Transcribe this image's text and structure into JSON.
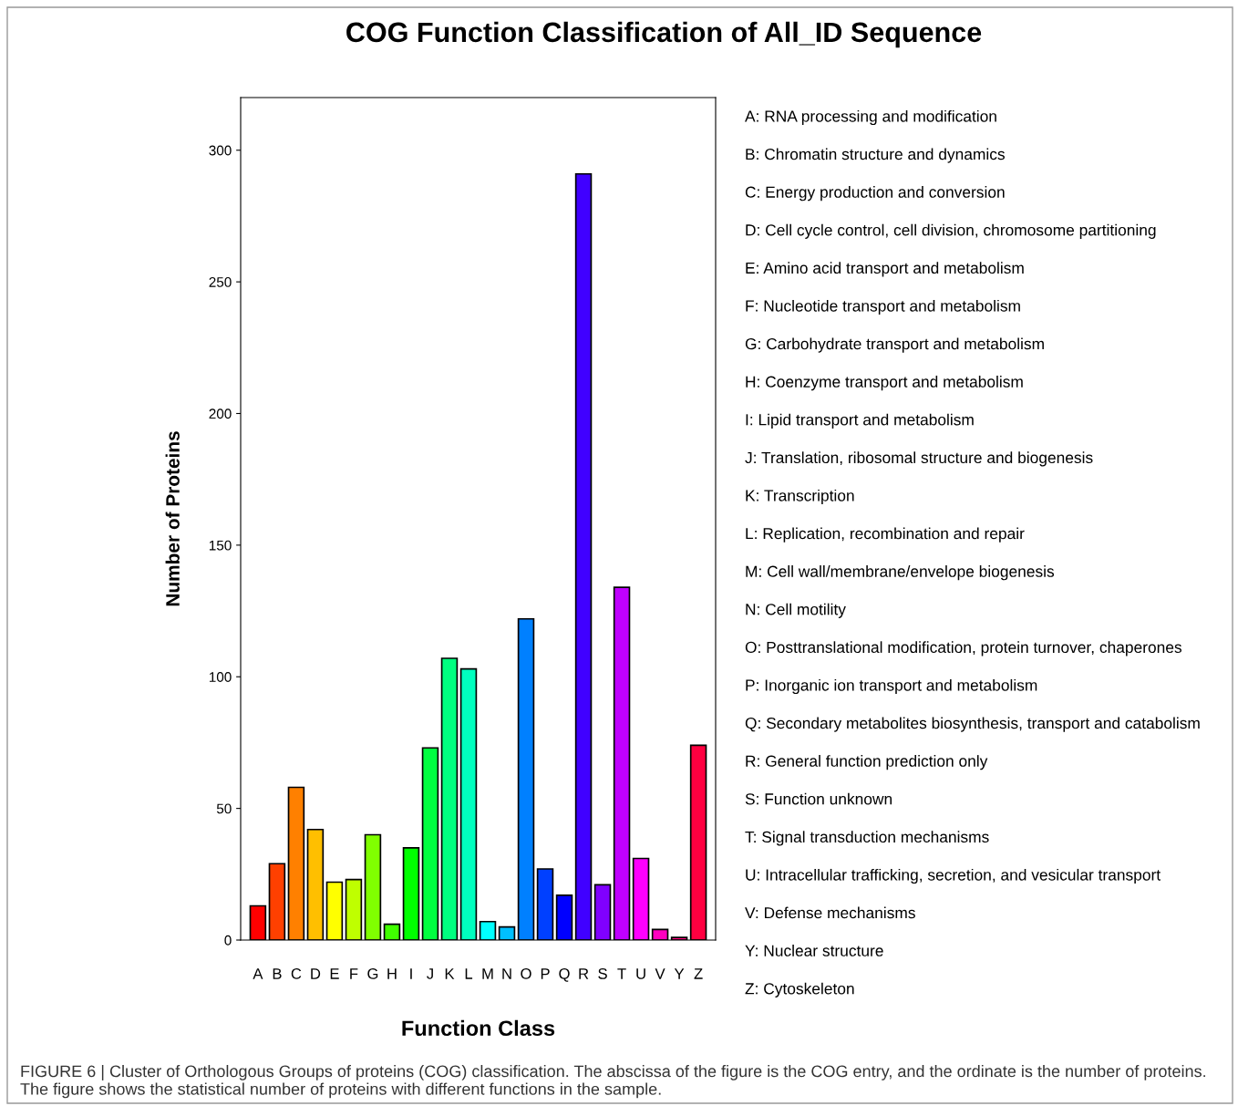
{
  "chart_data": {
    "type": "bar",
    "title": "COG Function Classification of All_ID Sequence",
    "xlabel": "Function Class",
    "ylabel": "Number of Proteins",
    "categories": [
      "A",
      "B",
      "C",
      "D",
      "E",
      "F",
      "G",
      "H",
      "I",
      "J",
      "K",
      "L",
      "M",
      "N",
      "O",
      "P",
      "Q",
      "R",
      "S",
      "T",
      "U",
      "V",
      "Y",
      "Z"
    ],
    "values": [
      13,
      29,
      58,
      42,
      22,
      23,
      40,
      6,
      35,
      73,
      107,
      103,
      7,
      5,
      122,
      27,
      17,
      291,
      21,
      134,
      31,
      4,
      1,
      74
    ],
    "colors": [
      "#ff0000",
      "#ff4000",
      "#ff8000",
      "#ffbf00",
      "#ffff00",
      "#bfff00",
      "#80ff00",
      "#40ff00",
      "#00ff00",
      "#00ff40",
      "#00ff80",
      "#00ffbf",
      "#00ffff",
      "#00bfff",
      "#0080ff",
      "#0040ff",
      "#0000ff",
      "#4000ff",
      "#8000ff",
      "#bf00ff",
      "#ff00ff",
      "#ff00bf",
      "#ff0080",
      "#ff0040"
    ],
    "ylim": [
      0,
      320
    ],
    "yticks": [
      0,
      50,
      100,
      150,
      200,
      250,
      300
    ],
    "grid": false,
    "legend": false,
    "annotations": [
      "A: RNA processing and modification",
      "B: Chromatin structure and dynamics",
      "C: Energy production and conversion",
      "D: Cell cycle control, cell division, chromosome partitioning",
      "E: Amino acid transport and metabolism",
      "F: Nucleotide transport and metabolism",
      "G: Carbohydrate transport and metabolism",
      "H: Coenzyme transport and metabolism",
      "I: Lipid transport and metabolism",
      "J: Translation, ribosomal structure and biogenesis",
      "K: Transcription",
      "L: Replication, recombination and repair",
      "M: Cell wall/membrane/envelope biogenesis",
      "N: Cell motility",
      "O: Posttranslational modification, protein turnover, chaperones",
      "P: Inorganic ion transport and metabolism",
      "Q: Secondary metabolites biosynthesis, transport and catabolism",
      "R: General function prediction only",
      "S: Function unknown",
      "T: Signal transduction mechanisms",
      "U: Intracellular trafficking, secretion, and vesicular transport",
      "V: Defense mechanisms",
      "Y: Nuclear structure",
      "Z: Cytoskeleton",
      "FIGURE 6 | Cluster of Orthologous Groups of proteins (COG) classification. The abscissa of the figure is the COG entry, and the ordinate is the number of proteins. The figure shows the statistical number of proteins with different functions in the sample."
    ]
  }
}
